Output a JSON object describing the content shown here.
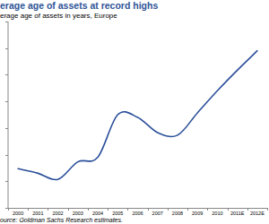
{
  "chart_data": {
    "type": "line",
    "title": "erage age of assets at record highs",
    "subtitle": "erage age of assets in years, Europe",
    "source": "ource: Goldman Sachs Research estimates.",
    "categories": [
      "2000",
      "2001",
      "2002",
      "2003",
      "2004",
      "2005",
      "2006",
      "2007",
      "2008",
      "2009",
      "2010",
      "2011E",
      "2012E"
    ],
    "values": [
      1.47,
      1.3,
      1.07,
      1.73,
      1.9,
      3.5,
      3.4,
      2.83,
      2.73,
      3.57,
      4.4,
      5.17,
      5.9
    ],
    "color": "#2b4f9a",
    "ylim": [
      0,
      7
    ],
    "yticks": [
      0,
      1,
      2,
      3,
      4,
      5,
      6,
      7
    ],
    "grid": false,
    "tick_labels": "x"
  }
}
